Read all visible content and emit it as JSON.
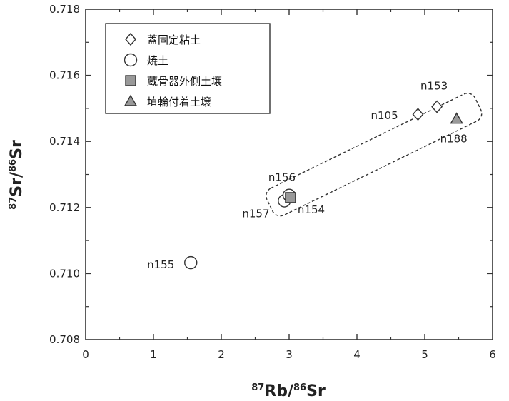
{
  "chart_data": {
    "type": "scatter",
    "xlim": [
      0,
      6
    ],
    "ylim": [
      0.708,
      0.718
    ],
    "x_ticks": [
      "0",
      "1",
      "2",
      "3",
      "4",
      "5",
      "6"
    ],
    "y_ticks": [
      "0.708",
      "0.710",
      "0.712",
      "0.714",
      "0.716",
      "0.718"
    ],
    "xlabel": {
      "sup1": "87",
      "main1": "Rb/",
      "sup2": "86",
      "main2": "Sr"
    },
    "ylabel": {
      "sup1": "87",
      "main1": "Sr/",
      "sup2": "86",
      "main2": "Sr"
    },
    "legend_position": "top-left",
    "series": [
      {
        "name": "蓋固定粘土",
        "marker": "diamond",
        "color": "#ffffff",
        "points": [
          {
            "x": 4.9,
            "y": 0.71482,
            "label": "n105"
          },
          {
            "x": 5.18,
            "y": 0.71505,
            "label": "n153"
          }
        ]
      },
      {
        "name": "焼土",
        "marker": "circle",
        "color": "#ffffff",
        "points": [
          {
            "x": 1.55,
            "y": 0.71033,
            "label": "n155"
          },
          {
            "x": 2.93,
            "y": 0.7122,
            "label": "n157"
          },
          {
            "x": 3.0,
            "y": 0.71237,
            "label": "n156"
          }
        ]
      },
      {
        "name": "蔵骨器外側土壌",
        "marker": "square",
        "color": "#999999",
        "points": [
          {
            "x": 3.02,
            "y": 0.7123,
            "label": "n154"
          }
        ]
      },
      {
        "name": "埴輪付着土壌",
        "marker": "triangle",
        "color": "#999999",
        "points": [
          {
            "x": 5.47,
            "y": 0.71468,
            "label": "n188"
          }
        ]
      }
    ],
    "enclosure": "dashed-rounded-box"
  }
}
